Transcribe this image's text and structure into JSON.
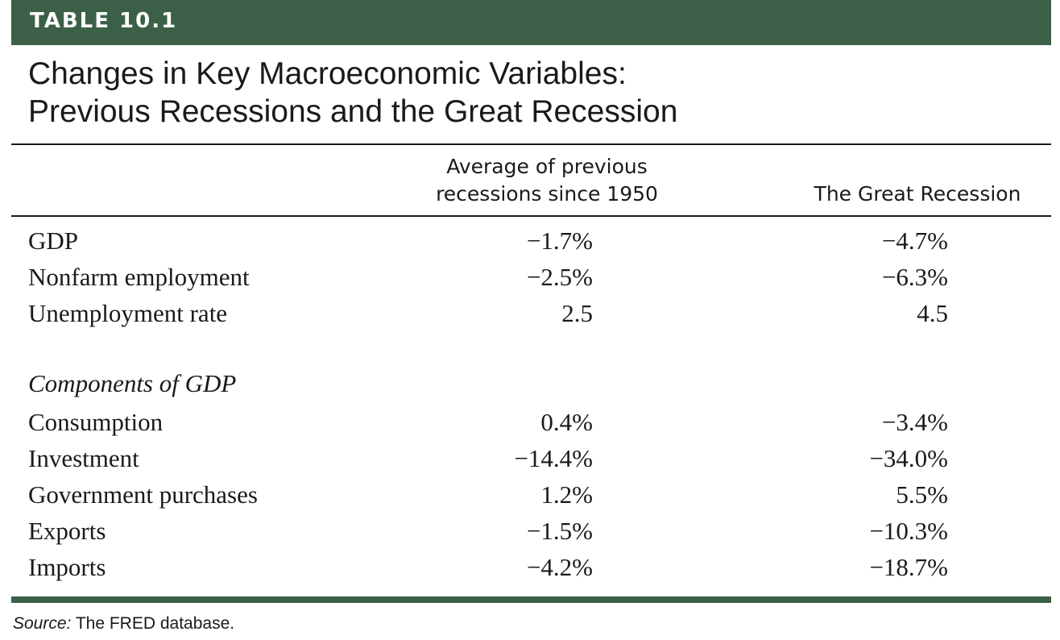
{
  "table_tag": "TABLE 10.1",
  "title_line1": "Changes in Key Macroeconomic Variables:",
  "title_line2": "Previous Recessions and the Great Recession",
  "columns": {
    "previous_line1": "Average of previous",
    "previous_line2": "recessions since 1950",
    "great": "The Great Recession"
  },
  "rows": [
    {
      "label": "GDP",
      "previous": "−1.7%",
      "great": "−4.7%"
    },
    {
      "label": "Nonfarm employment",
      "previous": "−2.5%",
      "great": "−6.3%"
    },
    {
      "label": "Unemployment rate",
      "previous": "2.5",
      "great": "4.5"
    }
  ],
  "components_heading": "Components of GDP",
  "components": [
    {
      "label": "Consumption",
      "previous": "0.4%",
      "great": "−3.4%"
    },
    {
      "label": "Investment",
      "previous": "−14.4%",
      "great": "−34.0%"
    },
    {
      "label": "Government purchases",
      "previous": "1.2%",
      "great": "5.5%"
    },
    {
      "label": "Exports",
      "previous": "−1.5%",
      "great": "−10.3%"
    },
    {
      "label": "Imports",
      "previous": "−4.2%",
      "great": "−18.7%"
    }
  ],
  "source_label": "Source:",
  "source_text": " The FRED database.",
  "colors": {
    "accent": "#3c6047",
    "text": "#1a1a1a"
  }
}
